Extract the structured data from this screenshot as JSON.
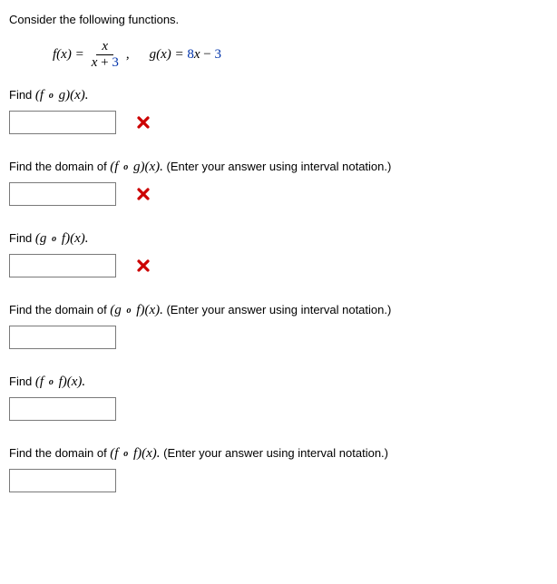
{
  "intro": "Consider the following functions.",
  "functions": {
    "f_label": "f(x) = ",
    "f_numerator": "x",
    "f_denominator_x": "x",
    "f_denominator_plus": " + ",
    "f_denominator_const": "3",
    "separator": ",",
    "g_label": "g(x) = ",
    "g_coeff": "8",
    "g_x": "x",
    "g_minus": " − ",
    "g_const": "3"
  },
  "questions": [
    {
      "prefix": "Find  ",
      "comp_open": "(f ",
      "comp_mid": "o",
      "comp_close": " g)(x).",
      "suffix": "",
      "marked_wrong": true
    },
    {
      "prefix": "Find the domain of  ",
      "comp_open": "(f ",
      "comp_mid": "o",
      "comp_close": " g)(x).",
      "suffix": "  (Enter your answer using interval notation.)",
      "marked_wrong": true
    },
    {
      "prefix": "Find  ",
      "comp_open": "(g ",
      "comp_mid": "o",
      "comp_close": " f)(x).",
      "suffix": "",
      "marked_wrong": true
    },
    {
      "prefix": "Find the domain of  ",
      "comp_open": "(g ",
      "comp_mid": "o",
      "comp_close": " f)(x).",
      "suffix": "  (Enter your answer using interval notation.)",
      "marked_wrong": false
    },
    {
      "prefix": "Find  ",
      "comp_open": "(f ",
      "comp_mid": "o",
      "comp_close": " f)(x).",
      "suffix": "",
      "marked_wrong": false
    },
    {
      "prefix": "Find the domain of  ",
      "comp_open": "(f ",
      "comp_mid": "o",
      "comp_close": " f)(x).",
      "suffix": "  (Enter your answer using interval notation.)",
      "marked_wrong": false
    }
  ],
  "colors": {
    "wrong_icon": "#cc0000",
    "const_color": "#0033aa"
  }
}
